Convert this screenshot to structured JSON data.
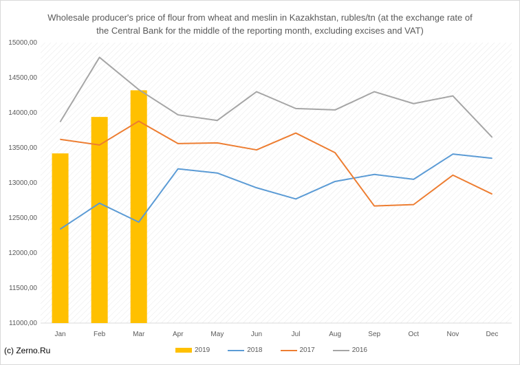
{
  "chart_data": {
    "type": "bar",
    "title": "Wholesale producer's price of flour from wheat and meslin in Kazakhstan, rubles/tn (at the exchange rate of the Central Bank for the middle of the reporting month, excluding excises and VAT)",
    "xlabel": "",
    "ylabel": "",
    "categories": [
      "Jan",
      "Feb",
      "Mar",
      "Apr",
      "May",
      "Jun",
      "Jul",
      "Aug",
      "Sep",
      "Oct",
      "Nov",
      "Dec"
    ],
    "ylim": [
      11000,
      15000
    ],
    "yticks": [
      "11000,00",
      "11500,00",
      "12000,00",
      "12500,00",
      "13000,00",
      "13500,00",
      "14000,00",
      "14500,00",
      "15000,00"
    ],
    "grid": "hatched plot background",
    "legend_position": "bottom",
    "series": [
      {
        "name": "2019",
        "kind": "bar",
        "color": "#ffc000",
        "values": [
          13420,
          13940,
          14320,
          null,
          null,
          null,
          null,
          null,
          null,
          null,
          null,
          null
        ]
      },
      {
        "name": "2018",
        "kind": "line",
        "color": "#5b9bd5",
        "values": [
          12340,
          12710,
          12440,
          13200,
          13140,
          12930,
          12770,
          13020,
          13120,
          13050,
          13410,
          13350
        ]
      },
      {
        "name": "2017",
        "kind": "line",
        "color": "#ed7d31",
        "values": [
          13620,
          13540,
          13880,
          13560,
          13570,
          13470,
          13710,
          13430,
          12670,
          12690,
          13110,
          12840
        ]
      },
      {
        "name": "2016",
        "kind": "line",
        "color": "#a5a5a5",
        "values": [
          13870,
          14790,
          14330,
          13970,
          13890,
          14300,
          14060,
          14040,
          14300,
          14130,
          14240,
          13650
        ]
      }
    ]
  },
  "footer": {
    "credit": "(c) Zerno.Ru"
  }
}
